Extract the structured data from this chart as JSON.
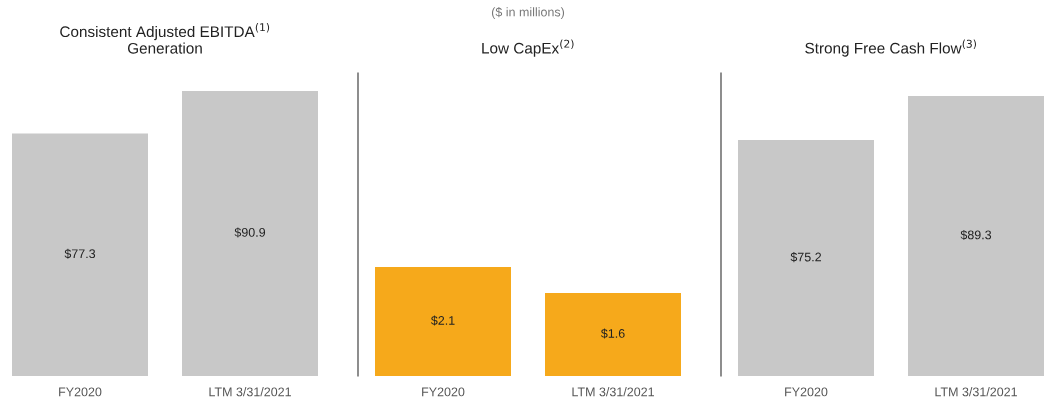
{
  "chart_data": [
    {
      "type": "bar",
      "title": "Consistent Adjusted EBITDA$^{(1)}$\nGeneration",
      "categories": [
        "FY2020",
        "LTM 3/31/2021"
      ],
      "values": [
        77.3,
        90.9
      ],
      "value_labels": [
        "$77.3",
        "$90.9"
      ],
      "color": "#c8c8c8",
      "tick_labels": "x",
      "grid": false,
      "legend": false
    },
    {
      "type": "bar",
      "title": "Low CapEx$^{(2)}$",
      "subtitle": "($ in millions)",
      "categories": [
        "FY2020",
        "LTM 3/31/2021"
      ],
      "values": [
        2.1,
        1.6
      ],
      "value_labels": [
        "$2.1",
        "$1.6"
      ],
      "color": "#f6a91b",
      "ylim": [
        0,
        5.84
      ],
      "tick_labels": "x",
      "grid": false,
      "legend": false
    },
    {
      "type": "bar",
      "title": "Strong Free Cash Flow$^{(3)}$",
      "categories": [
        "FY2020",
        "LTM 3/31/2021"
      ],
      "values": [
        75.2,
        89.3
      ],
      "value_labels": [
        "$75.2",
        "$89.3"
      ],
      "color": "#c8c8c8",
      "ylim": [
        0,
        96.6
      ],
      "tick_labels": "x",
      "grid": false,
      "legend": false
    }
  ]
}
